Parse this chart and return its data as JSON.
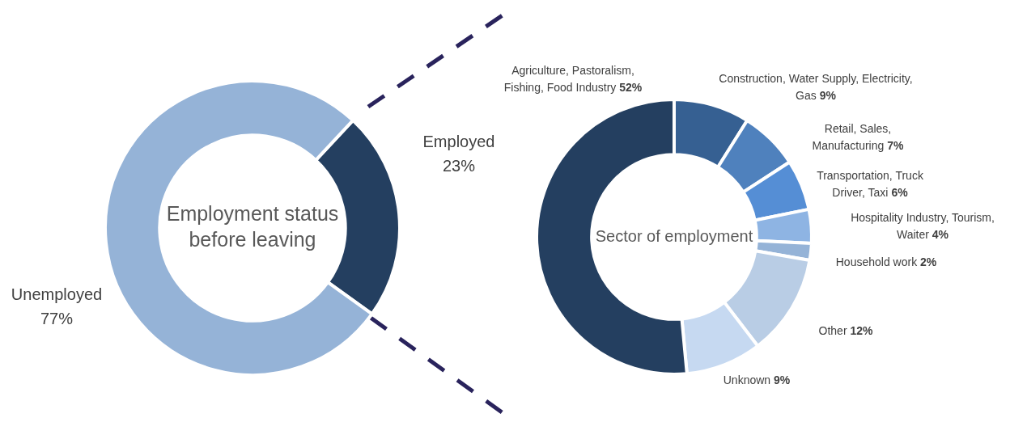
{
  "chart_data": [
    {
      "type": "donut",
      "title": "Employment status before leaving",
      "categories": [
        "Employed",
        "Unemployed"
      ],
      "values": [
        23,
        77
      ],
      "colors": [
        "#243f60",
        "#95b3d7"
      ],
      "value_labels": [
        "23%",
        "77%"
      ]
    },
    {
      "type": "donut",
      "title": "Sector of employment",
      "categories": [
        "Construction, Water Supply, Electricity, Gas",
        "Retail, Sales, Manufacturing",
        "Transportation, Truck Driver, Taxi",
        "Hospitality Industry, Tourism, Waiter",
        "Household work",
        "Other",
        "Unknown",
        "Agriculture, Pastoralism, Fishing, Food Industry"
      ],
      "values": [
        9,
        7,
        6,
        4,
        2,
        12,
        9,
        52
      ],
      "colors": [
        "#366092",
        "#4f81bd",
        "#558ed5",
        "#8eb4e3",
        "#95b3d7",
        "#b9cde5",
        "#c6d9f1",
        "#243f60"
      ],
      "value_labels": [
        "9%",
        "7%",
        "6%",
        "4%",
        "2%",
        "12%",
        "9%",
        "52%"
      ]
    }
  ]
}
